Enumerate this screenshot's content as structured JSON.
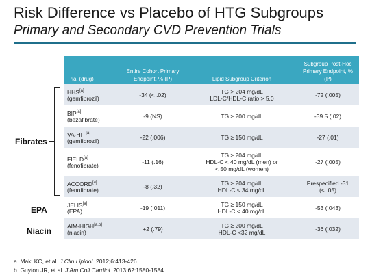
{
  "title": "Risk Difference vs Placebo of HTG Subgroups",
  "subtitle": "Primary and Secondary CVD Prevention Trials",
  "groups": {
    "fibrates": "Fibrates",
    "epa": "EPA",
    "niacin": "Niacin"
  },
  "table": {
    "headers": [
      "Trial (drug)",
      "Entire Cohort Primary Endpoint, % (P)",
      "Lipid Subgroup Criterion",
      "Subgroup Post-Hoc Primary Endpoint, % (P)"
    ],
    "rows": [
      {
        "trial": "HHS",
        "sup": "[a]",
        "drug": "(gemfibrozil)",
        "cohort": "-34 (< .02)",
        "criterion": [
          "TG > 204 mg/dL",
          "LDL-C/HDL-C ratio > 5.0"
        ],
        "subgroup": [
          "-72 (.005)"
        ]
      },
      {
        "trial": "BIP",
        "sup": "[a]",
        "drug": "(bezafibrate)",
        "cohort": "-9 (NS)",
        "criterion": [
          "TG ≥ 200 mg/dL"
        ],
        "subgroup": [
          "-39.5 (.02)"
        ]
      },
      {
        "trial": "VA-HIT",
        "sup": "[a]",
        "drug": "(gemfibrozil)",
        "cohort": "-22 (.006)",
        "criterion": [
          "TG ≥ 150 mg/dL"
        ],
        "subgroup": [
          "-27 (.01)"
        ]
      },
      {
        "trial": "FIELD",
        "sup": "[a]",
        "drug": "(fenofibrate)",
        "cohort": "-11 (.16)",
        "criterion": [
          "TG ≥ 204 mg/dL",
          "HDL-C < 40 mg/dL (men) or",
          "< 50 mg/dL (women)"
        ],
        "subgroup": [
          "-27 (.005)"
        ]
      },
      {
        "trial": "ACCORD",
        "sup": "[a]",
        "drug": "(fenofibrate)",
        "cohort": "-8 (.32)",
        "criterion": [
          "TG ≥ 204 mg/dL",
          "HDL-C ≤ 34 mg/dL"
        ],
        "subgroup": [
          "Prespecified -31",
          "(< .05)"
        ]
      },
      {
        "trial": "JELIS",
        "sup": "[a]",
        "drug": "(EPA)",
        "cohort": "-19 (.011)",
        "criterion": [
          "TG ≥ 150 mg/dL",
          "HDL-C < 40 mg/dL"
        ],
        "subgroup": [
          "-53 (.043)"
        ]
      },
      {
        "trial": "AIM-HIGH",
        "sup": "[a,b]",
        "drug": "(niacin)",
        "cohort": "+2 (.79)",
        "criterion": [
          "TG ≥ 200 mg/dL",
          "HDL-C <32 mg/dL"
        ],
        "subgroup": [
          "-36 (.032)"
        ]
      }
    ]
  },
  "footnotes": [
    {
      "pre": "a. Maki KC, et al. ",
      "journal": "J Clin Lipidol.",
      "post": " 2012;6:413-426."
    },
    {
      "pre": "b. Guyton JR, et al. ",
      "journal": "J Am Coll Cardiol.",
      "post": " 2013;62:1580-1584."
    }
  ],
  "colors": {
    "header_bg": "#3aa7c1",
    "band": "#e3e8ef",
    "rule": "#1f6f8b"
  }
}
